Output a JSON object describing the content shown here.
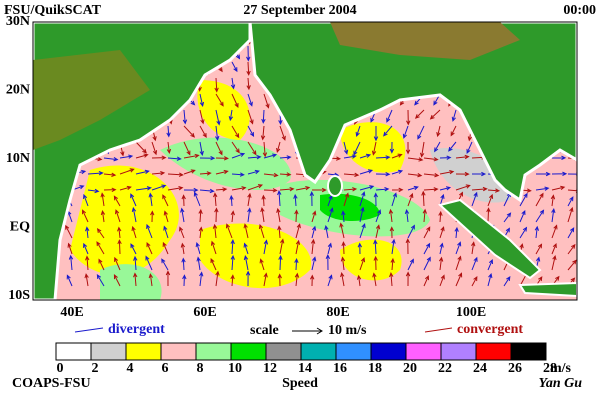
{
  "header": {
    "left": "FSU/QuikSCAT",
    "center": "27 September 2004",
    "right": "00:00"
  },
  "map": {
    "lat_labels": [
      "30N",
      "20N",
      "10N",
      "EQ",
      "10S"
    ],
    "lon_labels": [
      "40E",
      "60E",
      "80E",
      "100E"
    ]
  },
  "legend": {
    "divergent": "divergent",
    "scale": "scale",
    "scale_value": "10 m/s",
    "convergent": "convergent",
    "divergent_color": "#1a1acc",
    "convergent_color": "#b01010"
  },
  "colorbar": {
    "values": [
      0,
      2,
      4,
      6,
      8,
      10,
      12,
      14,
      16,
      18,
      20,
      22,
      24,
      26,
      28
    ],
    "colors": [
      "#ffffff",
      "#d0d0d0",
      "#ffff00",
      "#ffc0c0",
      "#98f898",
      "#00e000",
      "#909090",
      "#00b0b0",
      "#3090ff",
      "#0000d0",
      "#ff60ff",
      "#b080ff",
      "#ff0000",
      "#000000"
    ],
    "unit": "m/s",
    "title": "Speed"
  },
  "footer": {
    "left": "COAPS-FSU",
    "right": "Yan Gu"
  }
}
